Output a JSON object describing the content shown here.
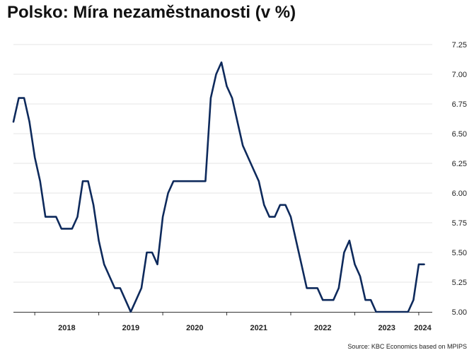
{
  "chart_data": {
    "type": "line",
    "title": "Polsko: Míra nezaměstnanosti (v %)",
    "source": "Source: KBC Economics based on MPIPS",
    "colors": {
      "line": "#0e2a5c",
      "grid": "#e6e6e6",
      "axis": "#333333"
    },
    "grid": true,
    "y_axis_position": "right",
    "ylim": [
      5.0,
      7.25
    ],
    "yticks": [
      "5.00",
      "5.25",
      "5.50",
      "5.75",
      "6.00",
      "6.25",
      "6.50",
      "6.75",
      "7.00",
      "7.25"
    ],
    "xlim": [
      "2017-09",
      "2024-03"
    ],
    "x_labels": [
      "2018",
      "2019",
      "2020",
      "2021",
      "2022",
      "2023",
      "2024"
    ],
    "series": [
      {
        "name": "",
        "x": [
          "2017-09",
          "2017-10",
          "2017-11",
          "2017-12",
          "2018-01",
          "2018-02",
          "2018-03",
          "2018-04",
          "2018-05",
          "2018-06",
          "2018-07",
          "2018-08",
          "2018-09",
          "2018-10",
          "2018-11",
          "2018-12",
          "2019-01",
          "2019-02",
          "2019-03",
          "2019-04",
          "2019-05",
          "2019-06",
          "2019-07",
          "2019-08",
          "2019-09",
          "2019-10",
          "2019-11",
          "2019-12",
          "2020-01",
          "2020-02",
          "2020-03",
          "2020-04",
          "2020-05",
          "2020-06",
          "2020-07",
          "2020-08",
          "2020-09",
          "2020-10",
          "2020-11",
          "2020-12",
          "2021-01",
          "2021-02",
          "2021-03",
          "2021-04",
          "2021-05",
          "2021-06",
          "2021-07",
          "2021-08",
          "2021-09",
          "2021-10",
          "2021-11",
          "2021-12",
          "2022-01",
          "2022-02",
          "2022-03",
          "2022-04",
          "2022-05",
          "2022-06",
          "2022-07",
          "2022-08",
          "2022-09",
          "2022-10",
          "2022-11",
          "2022-12",
          "2023-01",
          "2023-02",
          "2023-03",
          "2023-04",
          "2023-05",
          "2023-06",
          "2023-07",
          "2023-08",
          "2023-09",
          "2023-10",
          "2023-11",
          "2023-12",
          "2024-01",
          "2024-02"
        ],
        "values": [
          6.6,
          6.8,
          6.8,
          6.6,
          6.3,
          6.1,
          5.8,
          5.8,
          5.8,
          5.7,
          5.7,
          5.7,
          5.8,
          6.1,
          6.1,
          5.9,
          5.6,
          5.4,
          5.3,
          5.2,
          5.2,
          5.1,
          5.0,
          5.1,
          5.2,
          5.5,
          5.5,
          5.4,
          5.8,
          6.0,
          6.1,
          6.1,
          6.1,
          6.1,
          6.1,
          6.1,
          6.1,
          6.8,
          7.0,
          7.1,
          6.9,
          6.8,
          6.6,
          6.4,
          6.3,
          6.2,
          6.1,
          5.9,
          5.8,
          5.8,
          5.9,
          5.9,
          5.8,
          5.6,
          5.4,
          5.2,
          5.2,
          5.2,
          5.1,
          5.1,
          5.1,
          5.2,
          5.5,
          5.6,
          5.4,
          5.3,
          5.1,
          5.1,
          5.0,
          5.0,
          5.0,
          5.0,
          5.0,
          5.0,
          5.0,
          5.1,
          5.4,
          5.4
        ]
      }
    ]
  }
}
